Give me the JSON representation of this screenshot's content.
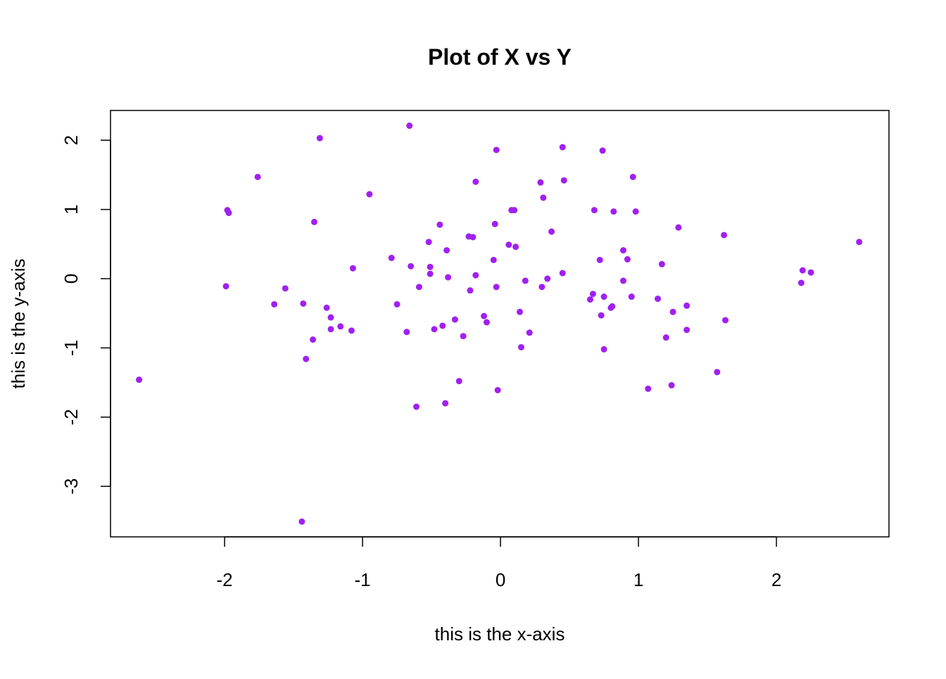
{
  "chart_data": {
    "type": "scatter",
    "title": "Plot of X vs Y",
    "x_label": "this is the x-axis",
    "y_label": "this is the y-axis",
    "color": "#a020f0",
    "x": [
      -2.62,
      -1.99,
      -1.98,
      -1.97,
      -1.76,
      -1.64,
      -1.56,
      -1.43,
      -1.44,
      -1.41,
      -1.36,
      -1.35,
      -1.31,
      -1.26,
      -1.23,
      -1.23,
      -1.16,
      -1.08,
      -1.07,
      -0.95,
      -0.79,
      -0.75,
      -0.68,
      -0.66,
      -0.65,
      -0.61,
      -0.59,
      -0.52,
      -0.51,
      -0.51,
      -0.48,
      -0.44,
      -0.42,
      -0.4,
      -0.39,
      -0.38,
      -0.33,
      -0.3,
      -0.27,
      -0.23,
      -0.22,
      -0.2,
      -0.18,
      -0.18,
      -0.12,
      -0.1,
      -0.05,
      -0.04,
      -0.03,
      -0.03,
      -0.02,
      0.06,
      0.08,
      0.1,
      0.11,
      0.14,
      0.15,
      0.18,
      0.21,
      0.29,
      0.3,
      0.31,
      0.34,
      0.37,
      0.45,
      0.45,
      0.46,
      0.65,
      0.67,
      0.68,
      0.72,
      0.73,
      0.74,
      0.75,
      0.75,
      0.8,
      0.81,
      0.82,
      0.89,
      0.89,
      0.92,
      0.95,
      0.96,
      0.98,
      1.07,
      1.14,
      1.17,
      1.2,
      1.24,
      1.25,
      1.29,
      1.35,
      1.35,
      1.57,
      1.62,
      1.63,
      2.18,
      2.19,
      2.25,
      2.6
    ],
    "y": [
      -1.46,
      -0.11,
      0.99,
      0.95,
      1.47,
      -0.37,
      -0.14,
      -0.36,
      -3.51,
      -1.16,
      -0.88,
      0.82,
      2.03,
      -0.42,
      -0.56,
      -0.73,
      -0.69,
      -0.75,
      0.15,
      1.22,
      0.3,
      -0.37,
      -0.77,
      2.21,
      0.18,
      -1.85,
      -0.12,
      0.53,
      0.17,
      0.07,
      -0.73,
      0.78,
      -0.68,
      -1.8,
      0.41,
      0.02,
      -0.59,
      -1.48,
      -0.83,
      0.61,
      -0.17,
      0.6,
      0.05,
      1.4,
      -0.54,
      -0.63,
      0.27,
      0.79,
      1.86,
      -0.12,
      -1.61,
      0.49,
      0.99,
      0.99,
      0.46,
      -0.48,
      -0.99,
      -0.03,
      -0.78,
      1.39,
      -0.12,
      1.17,
      0.0,
      0.68,
      0.08,
      1.9,
      1.42,
      -0.3,
      -0.22,
      0.99,
      0.27,
      -0.53,
      1.85,
      -0.26,
      -1.02,
      -0.42,
      -0.4,
      0.97,
      -0.03,
      0.41,
      0.28,
      -0.26,
      1.47,
      0.97,
      -1.59,
      -0.29,
      0.21,
      -0.85,
      -1.54,
      -0.48,
      0.74,
      -0.74,
      -0.39,
      -1.35,
      0.63,
      -0.6,
      -0.06,
      0.12,
      0.09,
      0.53
    ],
    "xlim": [
      -2.827,
      2.816
    ],
    "ylim": [
      -3.73,
      2.43
    ],
    "xticks": [
      -2,
      -1,
      0,
      1,
      2
    ],
    "yticks": [
      -3,
      -2,
      -1,
      0,
      1,
      2
    ]
  }
}
